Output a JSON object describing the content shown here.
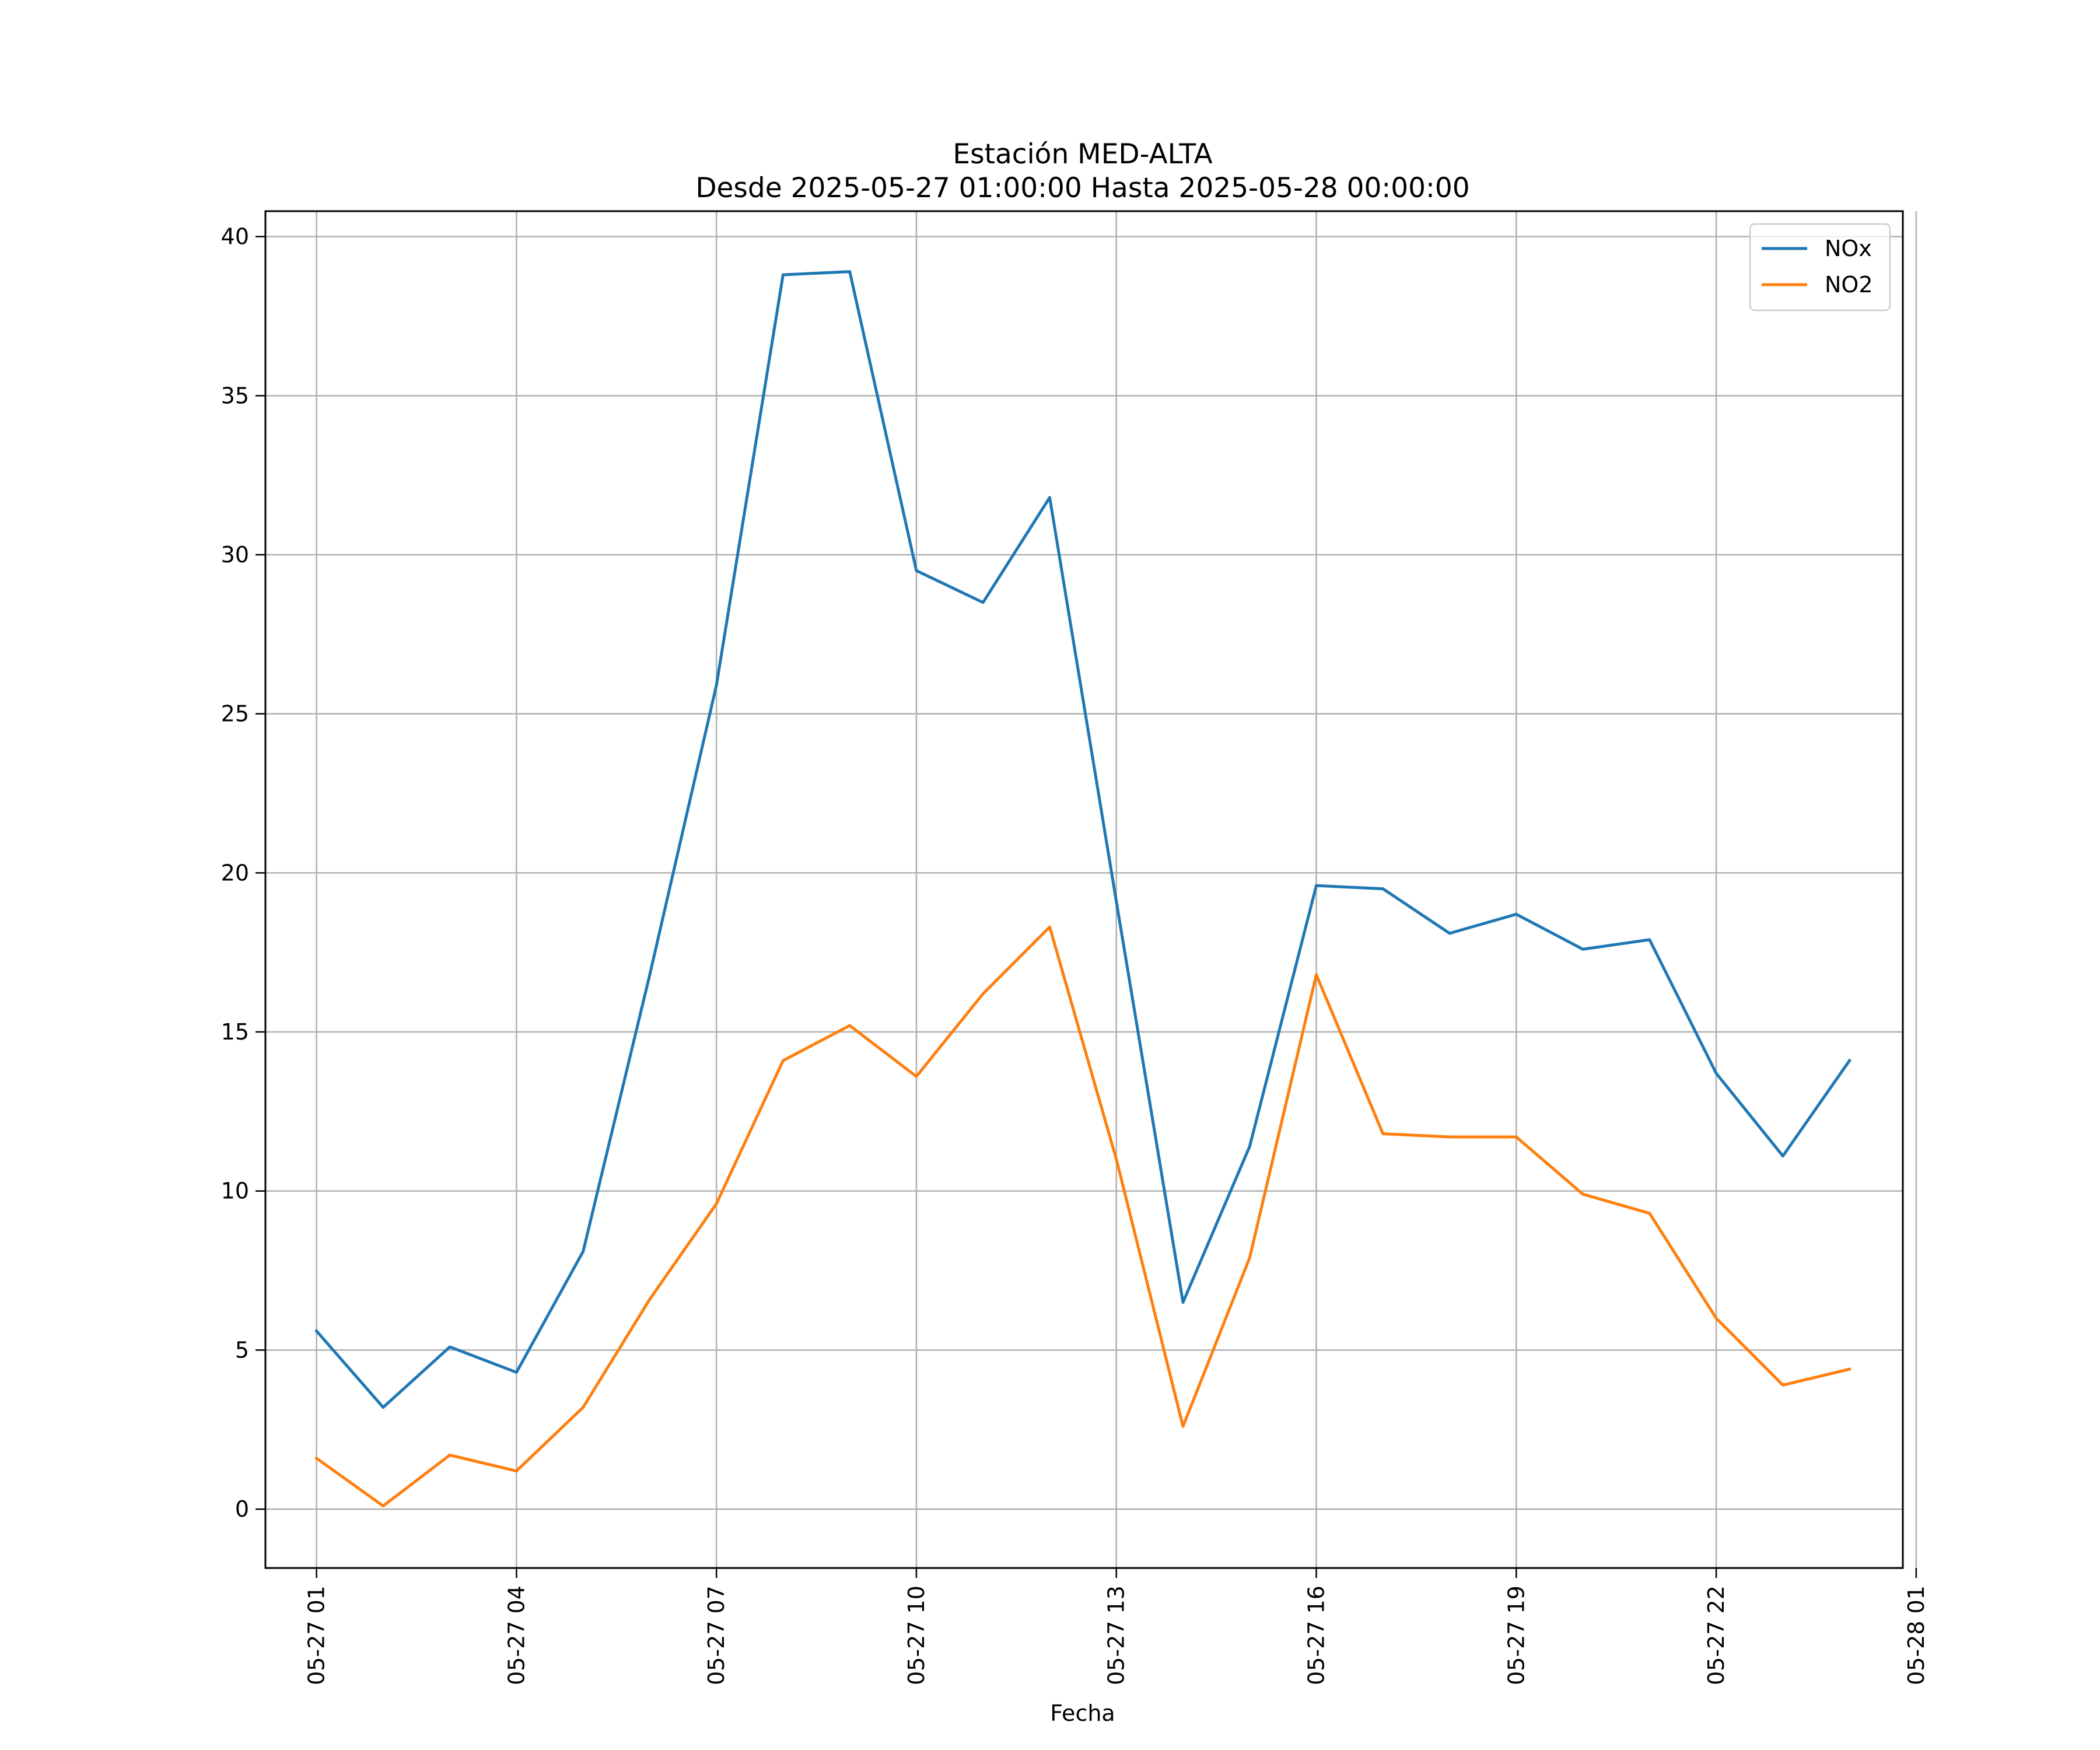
{
  "chart_data": {
    "type": "line",
    "title": "Estación MED-ALTA",
    "subtitle": "Desde 2025-05-27 01:00:00 Hasta 2025-05-28 00:00:00",
    "xlabel": "Fecha",
    "ylabel": "",
    "x": [
      "2025-05-27 01:00",
      "2025-05-27 02:00",
      "2025-05-27 03:00",
      "2025-05-27 04:00",
      "2025-05-27 05:00",
      "2025-05-27 06:00",
      "2025-05-27 07:00",
      "2025-05-27 08:00",
      "2025-05-27 09:00",
      "2025-05-27 10:00",
      "2025-05-27 11:00",
      "2025-05-27 12:00",
      "2025-05-27 13:00",
      "2025-05-27 14:00",
      "2025-05-27 15:00",
      "2025-05-27 16:00",
      "2025-05-27 17:00",
      "2025-05-27 18:00",
      "2025-05-27 19:00",
      "2025-05-27 20:00",
      "2025-05-27 21:00",
      "2025-05-27 22:00",
      "2025-05-27 23:00",
      "2025-05-28 00:00"
    ],
    "series": [
      {
        "name": "NOx",
        "color": "#1f77b4",
        "values": [
          5.6,
          3.2,
          5.1,
          4.3,
          8.1,
          16.8,
          25.9,
          38.8,
          38.9,
          29.5,
          28.5,
          31.8,
          19.1,
          6.5,
          11.4,
          19.6,
          19.5,
          18.1,
          18.7,
          17.6,
          17.9,
          13.7,
          11.1,
          14.1
        ]
      },
      {
        "name": "NO2",
        "color": "#ff7f0e",
        "values": [
          1.6,
          0.1,
          1.7,
          1.2,
          3.2,
          6.6,
          9.6,
          14.1,
          15.2,
          13.6,
          16.2,
          18.3,
          11.0,
          2.6,
          7.9,
          16.8,
          11.8,
          11.7,
          11.7,
          9.9,
          9.3,
          6.0,
          3.9,
          4.4
        ]
      }
    ],
    "xticks": [
      "05-27 01",
      "05-27 04",
      "05-27 07",
      "05-27 10",
      "05-27 13",
      "05-27 16",
      "05-27 19",
      "05-27 22",
      "05-28 01"
    ],
    "yticks": [
      0,
      5,
      10,
      15,
      20,
      25,
      30,
      35,
      40
    ],
    "xlim": [
      "2025-05-27 00:14",
      "2025-05-28 00:48"
    ],
    "ylim": [
      -1.85,
      40.8
    ],
    "grid": true,
    "legend_position": "top-right"
  }
}
